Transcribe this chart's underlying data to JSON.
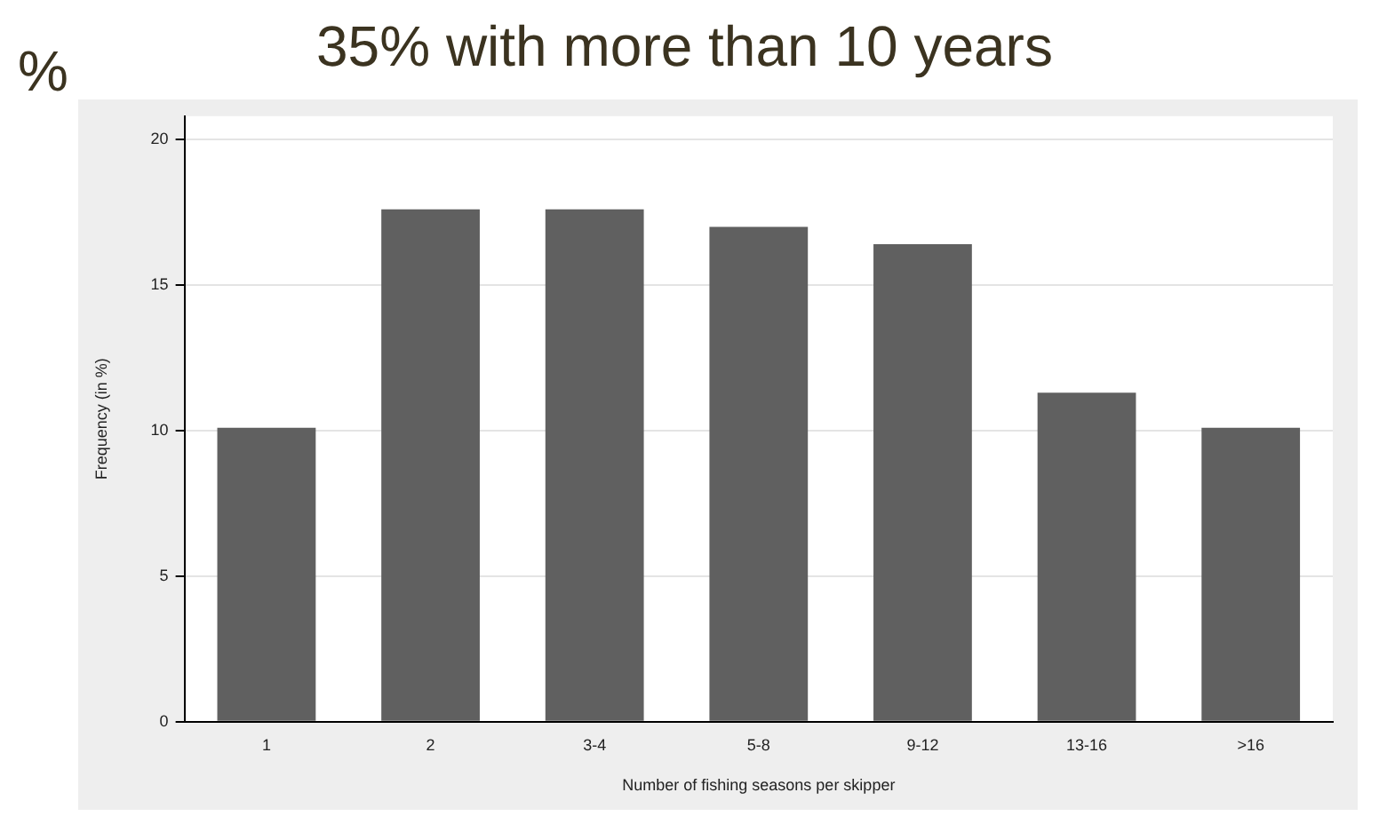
{
  "chart_data": {
    "type": "bar",
    "title": "35% with more than 10 years",
    "annotations": [
      "%"
    ],
    "xlabel": "Number of fishing seasons per skipper",
    "ylabel": "Frequency (in %)",
    "categories": [
      "1",
      "2",
      "3-4",
      "5-8",
      "9-12",
      "13-16",
      ">16"
    ],
    "values": [
      10.1,
      17.6,
      17.6,
      17.0,
      16.4,
      11.3,
      10.1
    ],
    "color": "#606060",
    "ylim": [
      0,
      20.8
    ],
    "yticks": [
      0,
      5,
      10,
      15,
      20
    ],
    "grid": "y",
    "legend": false
  }
}
